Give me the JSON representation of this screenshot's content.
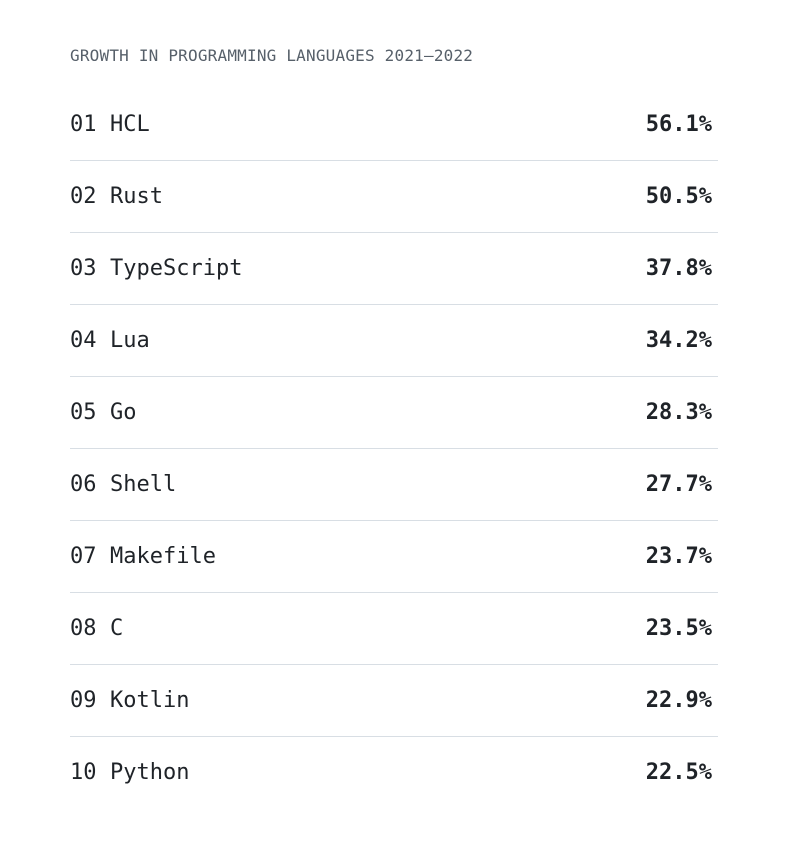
{
  "heading": "GROWTH IN PROGRAMMING LANGUAGES 2021–2022",
  "languages": [
    {
      "rank": "01",
      "name": "HCL",
      "value": "56.1%"
    },
    {
      "rank": "02",
      "name": "Rust",
      "value": "50.5%"
    },
    {
      "rank": "03",
      "name": "TypeScript",
      "value": "37.8%"
    },
    {
      "rank": "04",
      "name": "Lua",
      "value": "34.2%"
    },
    {
      "rank": "05",
      "name": "Go",
      "value": "28.3%"
    },
    {
      "rank": "06",
      "name": "Shell",
      "value": "27.7%"
    },
    {
      "rank": "07",
      "name": "Makefile",
      "value": "23.7%"
    },
    {
      "rank": "08",
      "name": "C",
      "value": "23.5%"
    },
    {
      "rank": "09",
      "name": "Kotlin",
      "value": "22.9%"
    },
    {
      "rank": "10",
      "name": "Python",
      "value": "22.5%"
    }
  ],
  "colors": {
    "text": "#1f2328",
    "muted": "#57606a",
    "divider": "#d8dee4"
  }
}
